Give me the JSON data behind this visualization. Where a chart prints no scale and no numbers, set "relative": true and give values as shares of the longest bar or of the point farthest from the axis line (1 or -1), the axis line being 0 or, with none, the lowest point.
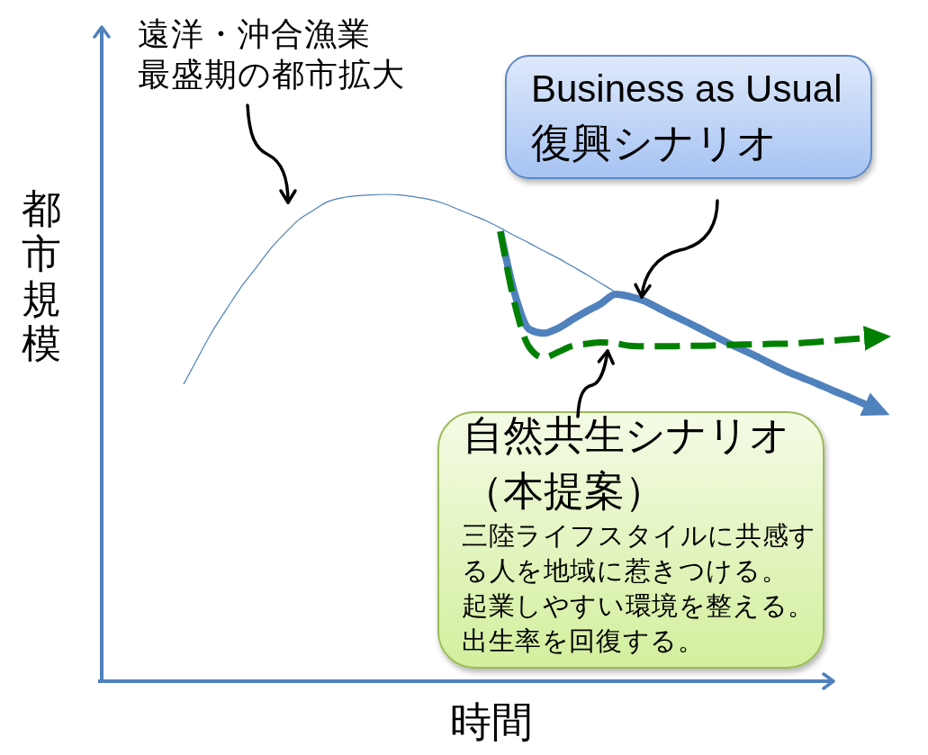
{
  "chart_data": {
    "type": "line",
    "relative": true,
    "xlabel": "時間",
    "ylabel": "都市規模",
    "categories": [
      null,
      null,
      null,
      null,
      null,
      null,
      null,
      null,
      null,
      null,
      null,
      null,
      null,
      null,
      null,
      null,
      null,
      null,
      null,
      null,
      null,
      null,
      null,
      null,
      null,
      null,
      null,
      null,
      null,
      null,
      null,
      null,
      null,
      null,
      null,
      null,
      null,
      null,
      null,
      null,
      null,
      null,
      null,
      null,
      null,
      null,
      null,
      null,
      null
    ],
    "series": [
      {
        "color": "#4f81bd",
        "values": [
          0.61,
          0.665,
          0.719,
          0.765,
          0.81,
          0.848,
          0.887,
          0.919,
          0.948,
          0.967,
          0.985,
          0.993,
          0.997,
          0.999,
          1,
          0.999,
          0.995,
          0.99,
          0.982,
          0.97,
          0.958,
          0.946,
          0.931,
          0.915,
          0.9,
          0.884,
          0.869,
          0.852,
          0.835,
          0.817,
          0.799,
          null,
          null,
          null,
          null,
          null,
          null,
          null,
          null,
          null,
          null,
          null,
          null,
          null,
          null,
          null,
          null,
          null,
          null
        ]
      },
      {
        "color": "#4f81bd",
        "values": [
          null,
          null,
          null,
          null,
          null,
          null,
          null,
          null,
          null,
          null,
          null,
          null,
          null,
          null,
          null,
          null,
          null,
          null,
          null,
          null,
          null,
          null,
          0.924,
          0.795,
          0.723,
          0.715,
          0.725,
          0.743,
          0.76,
          0.776,
          0.795,
          0.79,
          0.781,
          0.766,
          0.751,
          0.737,
          0.722,
          0.707,
          0.692,
          0.678,
          0.664,
          0.649,
          0.635,
          0.623,
          0.611,
          0.598,
          0.586,
          0.573,
          0.56
        ]
      },
      {
        "color": "#008000",
        "line_style": "dashed",
        "values": [
          null,
          null,
          null,
          null,
          null,
          null,
          null,
          null,
          null,
          null,
          null,
          null,
          null,
          null,
          null,
          null,
          null,
          null,
          null,
          null,
          null,
          null,
          0.924,
          0.774,
          0.686,
          0.665,
          0.676,
          0.689,
          0.693,
          0.696,
          0.694,
          0.689,
          0.688,
          0.688,
          0.688,
          0.689,
          0.689,
          0.69,
          0.691,
          0.692,
          0.692,
          0.693,
          0.693,
          0.695,
          0.697,
          0.699,
          0.702,
          0.704,
          0.706
        ]
      }
    ],
    "annotations": [
      "遠洋・沖合漁業最盛期の都市拡大",
      "Business as Usual\n復興シナリオ",
      "自然共生シナリオ（本提案）",
      "三陸ライフスタイルに共感する人を地域に惹きつける。起業しやすい環境を整える。出生率を回復する。"
    ]
  }
}
